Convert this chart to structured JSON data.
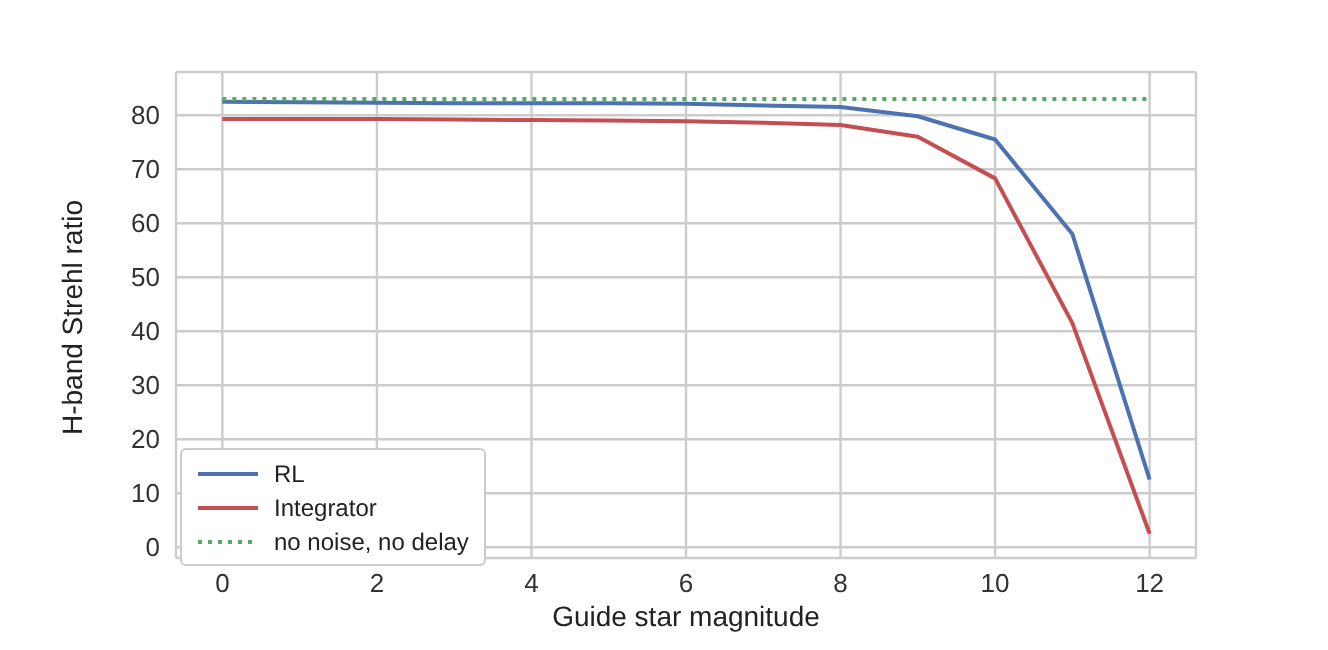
{
  "chart_data": {
    "type": "line",
    "xlabel": "Guide star magnitude",
    "ylabel": "H-band Strehl ratio",
    "x": [
      0,
      1,
      2,
      3,
      4,
      5,
      6,
      7,
      8,
      9,
      10,
      11,
      12
    ],
    "series": [
      {
        "name": "RL",
        "color": "#4c72b0",
        "values": [
          82.5,
          82.4,
          82.3,
          82.2,
          82.2,
          82.2,
          82.1,
          81.8,
          81.5,
          79.8,
          75.5,
          58,
          12.5
        ]
      },
      {
        "name": "Integrator",
        "color": "#c44e52",
        "values": [
          79.3,
          79.3,
          79.3,
          79.2,
          79.1,
          79,
          78.9,
          78.6,
          78.2,
          76,
          68.3,
          41.5,
          2.5
        ]
      },
      {
        "name": "no noise, no delay",
        "color": "#55a868",
        "line_style": "dotted",
        "values": [
          83,
          83,
          83,
          83,
          83,
          83,
          83,
          83,
          83,
          83,
          83,
          83,
          83
        ]
      }
    ],
    "xlim": [
      -0.6,
      12.6
    ],
    "xticks": [
      0,
      2,
      4,
      6,
      8,
      10,
      12
    ],
    "ylim": [
      -2,
      88
    ],
    "yticks": [
      0,
      10,
      20,
      30,
      40,
      50,
      60,
      70,
      80
    ],
    "grid": true,
    "legend": "bottom left",
    "line_style": "solid"
  }
}
